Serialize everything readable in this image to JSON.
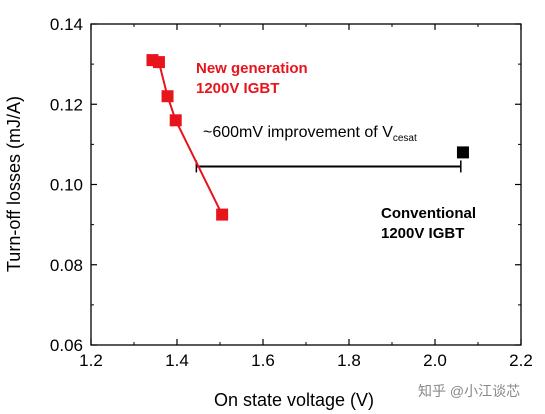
{
  "chart_data": {
    "type": "scatter",
    "xlabel": "On state voltage (V)",
    "ylabel": "Turn-off losses (mJ/A)",
    "xlim": [
      1.2,
      2.2
    ],
    "ylim": [
      0.06,
      0.14
    ],
    "xticks": [
      "1.2",
      "1.4",
      "1.6",
      "1.8",
      "2.0",
      "2.2"
    ],
    "yticks": [
      "0.06",
      "0.08",
      "0.10",
      "0.12",
      "0.14"
    ],
    "grid": false,
    "series": [
      {
        "name": "New generation 1200V IGBT",
        "color": "#e8141c",
        "marker": "square",
        "connected": true,
        "points": [
          [
            1.343,
            0.131
          ],
          [
            1.358,
            0.1305
          ],
          [
            1.378,
            0.122
          ],
          [
            1.397,
            0.116
          ],
          [
            1.505,
            0.0925
          ]
        ]
      },
      {
        "name": "Conventional 1200V IGBT",
        "color": "#000000",
        "marker": "square",
        "connected": false,
        "points": [
          [
            2.065,
            0.108
          ]
        ]
      }
    ],
    "annotations": {
      "new_gen_line1": "New generation",
      "new_gen_line2": "1200V IGBT",
      "conventional_line1": "Conventional",
      "conventional_line2": "1200V IGBT",
      "improvement_text": "~600mV improvement of V",
      "improvement_subscript": "cesat",
      "improvement_bar": {
        "x_start": 1.445,
        "x_end": 2.06,
        "y": 0.1045
      }
    }
  },
  "watermark": "知乎 @小江谈芯"
}
